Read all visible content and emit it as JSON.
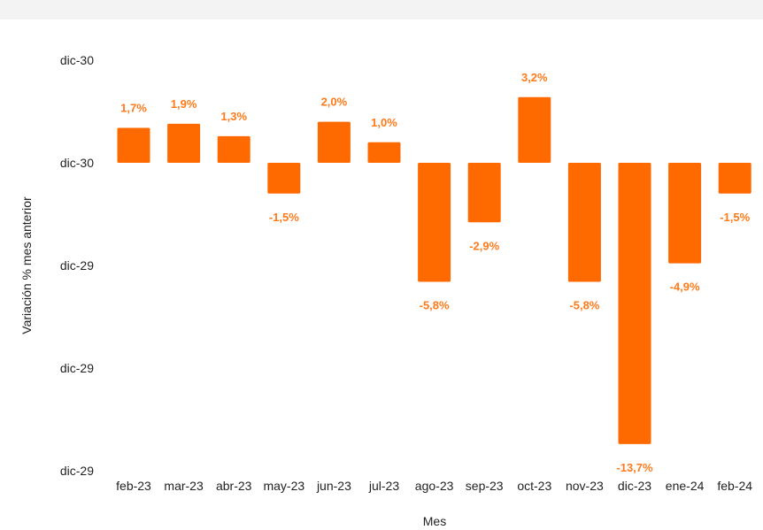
{
  "chart_data": {
    "type": "bar",
    "categories": [
      "feb-23",
      "mar-23",
      "abr-23",
      "may-23",
      "jun-23",
      "jul-23",
      "ago-23",
      "sep-23",
      "oct-23",
      "nov-23",
      "dic-23",
      "ene-24",
      "feb-24"
    ],
    "values": [
      1.7,
      1.9,
      1.3,
      -1.5,
      2.0,
      1.0,
      -5.8,
      -2.9,
      3.2,
      -5.8,
      -13.7,
      -4.9,
      -1.5
    ],
    "data_labels": [
      "1,7%",
      "1,9%",
      "1,3%",
      "-1,5%",
      "2,0%",
      "1,0%",
      "-5,8%",
      "-2,9%",
      "3,2%",
      "-5,8%",
      "-13,7%",
      "-4,9%",
      "-1,5%"
    ],
    "ytick_labels": [
      "dic-30",
      "dic-30",
      "dic-29",
      "dic-29",
      "dic-29"
    ],
    "ytick_values": [
      5,
      0,
      -5,
      -10,
      -15
    ],
    "ylim": [
      -15,
      5
    ],
    "xlabel": "Mes",
    "ylabel": "Variación % mes anterior",
    "grid": false,
    "bar_color": "#ff6a00",
    "label_color": "#ff7a1a"
  }
}
